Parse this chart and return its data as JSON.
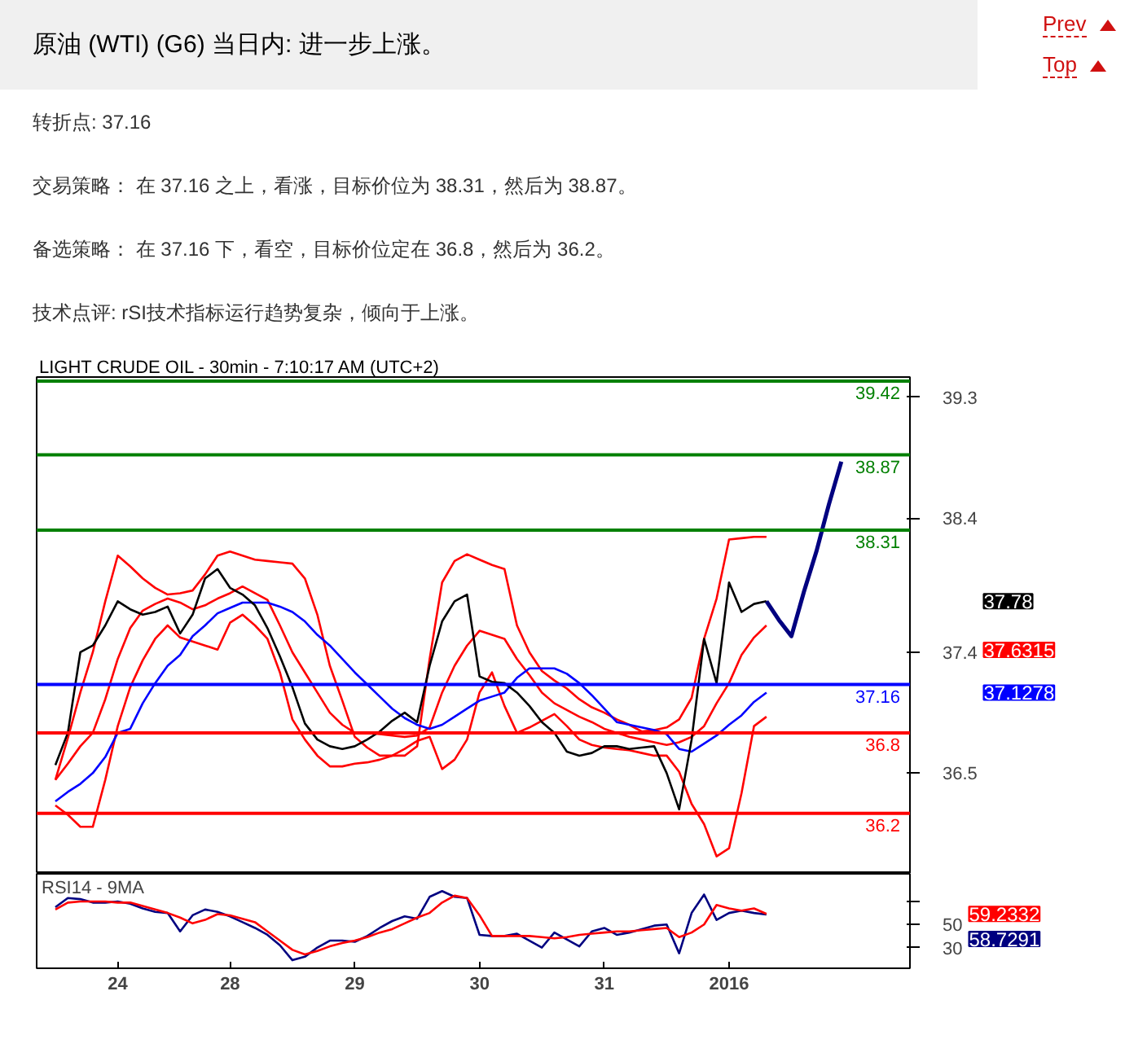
{
  "chart_data": [
    {
      "type": "line",
      "title": "原油 (WTI) (G6) 当日内: 进一步上涨。",
      "subtitle": "LIGHT CRUDE OIL - 30min - 7:10:17 AM (UTC+2)",
      "annotations": [
        "Prev",
        "Top",
        "转折点: 37.16",
        "交易策略： 在 37.16 之上，看涨，目标价位为 38.31，然后为 38.87。",
        "备选策略： 在 37.16 下，看空，目标价位定在 36.8，然后为 36.2。",
        "技术点评: rSI技术指标运行趋势复杂，倾向于上涨。",
        "37.78",
        "37.6315",
        "37.1278"
      ],
      "categories": [
        null,
        null,
        null,
        null,
        null,
        null,
        "24",
        null,
        null,
        null,
        null,
        null,
        null,
        null,
        null,
        "28",
        null,
        null,
        null,
        null,
        null,
        null,
        null,
        null,
        null,
        "29",
        null,
        null,
        null,
        null,
        null,
        null,
        null,
        null,
        null,
        "30",
        null,
        null,
        null,
        null,
        null,
        null,
        null,
        null,
        null,
        "31",
        null,
        null,
        null,
        null,
        null,
        null,
        null,
        null,
        null,
        "2016",
        null,
        null,
        null,
        null,
        null,
        null,
        null,
        null,
        null,
        null,
        null,
        null,
        null,
        null
      ],
      "ylim": [
        35.75,
        39.45
      ],
      "yticks": [
        39.3,
        38.4,
        37.4,
        36.5
      ],
      "tick_labels": "y",
      "grid": false,
      "series": [
        {
          "color": "#ff0000",
          "values": [
            null,
            36.45,
            36.76,
            37.1,
            37.4,
            37.78,
            38.12,
            38.04,
            37.95,
            37.88,
            37.83,
            37.84,
            37.86,
            37.98,
            38.12,
            38.15,
            38.12,
            38.09,
            38.08,
            38.07,
            38.06,
            37.95,
            37.68,
            37.3,
            37.04,
            36.77,
            36.69,
            36.63,
            36.63,
            36.63,
            36.7,
            37.35,
            37.92,
            38.08,
            38.13,
            38.09,
            38.05,
            38.02,
            37.6,
            37.4,
            37.26,
            37.19,
            37.13,
            37.05,
            36.99,
            36.95,
            36.9,
            36.86,
            36.81,
            36.82,
            36.84,
            36.9,
            37.06,
            37.5,
            37.8,
            38.24,
            38.25,
            38.26,
            38.26,
            null,
            null,
            null,
            null,
            null,
            null,
            null,
            null,
            null,
            null,
            null
          ]
        },
        {
          "color": "#ff0000",
          "values": [
            null,
            36.26,
            36.19,
            36.1,
            36.1,
            36.45,
            36.85,
            37.14,
            37.34,
            37.5,
            37.6,
            37.51,
            37.48,
            37.45,
            37.42,
            37.62,
            37.68,
            37.6,
            37.5,
            37.25,
            36.9,
            36.75,
            36.63,
            36.55,
            36.55,
            36.57,
            36.58,
            36.6,
            36.63,
            36.68,
            36.74,
            36.77,
            36.53,
            36.6,
            36.75,
            37.1,
            37.25,
            37.0,
            36.8,
            36.84,
            36.89,
            36.94,
            36.85,
            36.75,
            36.71,
            36.69,
            36.68,
            36.67,
            36.65,
            36.63,
            36.63,
            36.51,
            36.27,
            36.12,
            35.88,
            35.94,
            36.35,
            36.85,
            36.92,
            null,
            null,
            null,
            null,
            null,
            null,
            null,
            null,
            null,
            null,
            null
          ]
        },
        {
          "color": "#ff0000",
          "values": [
            null,
            36.45,
            36.57,
            36.7,
            36.8,
            37.05,
            37.35,
            37.58,
            37.71,
            37.76,
            37.8,
            37.77,
            37.72,
            37.75,
            37.8,
            37.84,
            37.89,
            37.84,
            37.79,
            37.6,
            37.4,
            37.25,
            37.1,
            36.95,
            36.86,
            36.8,
            36.8,
            36.79,
            36.78,
            36.77,
            36.78,
            36.84,
            37.1,
            37.3,
            37.45,
            37.56,
            37.53,
            37.5,
            37.35,
            37.23,
            37.1,
            37.02,
            36.97,
            36.92,
            36.88,
            36.83,
            36.8,
            36.77,
            36.75,
            36.73,
            36.71,
            36.73,
            36.77,
            36.85,
            37.02,
            37.17,
            37.38,
            37.51,
            37.6,
            null,
            null,
            null,
            null,
            null,
            null,
            null,
            null,
            null,
            null,
            null
          ]
        },
        {
          "color": "#0000ff",
          "values": [
            null,
            36.29,
            36.36,
            36.42,
            36.5,
            36.62,
            36.8,
            36.83,
            37.02,
            37.17,
            37.3,
            37.38,
            37.52,
            37.6,
            37.69,
            37.73,
            37.77,
            37.77,
            37.77,
            37.74,
            37.7,
            37.63,
            37.53,
            37.45,
            37.35,
            37.25,
            37.16,
            37.07,
            36.98,
            36.91,
            36.86,
            36.83,
            36.86,
            36.92,
            36.98,
            37.04,
            37.07,
            37.1,
            37.21,
            37.28,
            37.28,
            37.28,
            37.24,
            37.17,
            37.08,
            36.98,
            36.88,
            36.86,
            36.84,
            36.82,
            36.79,
            36.68,
            36.66,
            36.72,
            36.78,
            36.86,
            36.93,
            37.03,
            37.1,
            null,
            null,
            null,
            null,
            null,
            null,
            null,
            null,
            null,
            null,
            null
          ]
        },
        {
          "color": "#000000",
          "values": [
            null,
            36.56,
            36.8,
            37.4,
            37.45,
            37.6,
            37.78,
            37.72,
            37.68,
            37.7,
            37.74,
            37.54,
            37.68,
            37.95,
            38.02,
            37.88,
            37.83,
            37.75,
            37.58,
            37.37,
            37.14,
            36.87,
            36.75,
            36.7,
            36.68,
            36.7,
            36.75,
            36.81,
            36.89,
            36.95,
            36.88,
            37.3,
            37.63,
            37.78,
            37.83,
            37.22,
            37.18,
            37.17,
            37.1,
            37.0,
            36.88,
            36.8,
            36.66,
            36.63,
            36.65,
            36.7,
            36.7,
            36.68,
            36.69,
            36.7,
            36.5,
            36.23,
            36.75,
            37.5,
            37.17,
            37.92,
            37.7,
            37.76,
            37.78,
            null,
            null,
            null,
            null,
            null,
            null,
            null,
            null,
            null,
            null,
            null
          ]
        },
        {
          "color": "#000080",
          "values": [
            null,
            null,
            null,
            null,
            null,
            null,
            null,
            null,
            null,
            null,
            null,
            null,
            null,
            null,
            null,
            null,
            null,
            null,
            null,
            null,
            null,
            null,
            null,
            null,
            null,
            null,
            null,
            null,
            null,
            null,
            null,
            null,
            null,
            null,
            null,
            null,
            null,
            null,
            null,
            null,
            null,
            null,
            null,
            null,
            null,
            null,
            null,
            null,
            null,
            null,
            null,
            null,
            null,
            null,
            null,
            null,
            null,
            null,
            37.78,
            37.64,
            37.52,
            37.85,
            38.15,
            38.5,
            38.82,
            null,
            null,
            null,
            null,
            null
          ]
        }
      ],
      "ref_lines": [
        {
          "axis": "y",
          "value": 39.42,
          "label": "39.42",
          "color": "#008000"
        },
        {
          "axis": "y",
          "value": 38.87,
          "label": "38.87",
          "color": "#008000"
        },
        {
          "axis": "y",
          "value": 38.31,
          "label": "38.31",
          "color": "#008000"
        },
        {
          "axis": "y",
          "value": 37.16,
          "label": "37.16",
          "color": "#0000ff"
        },
        {
          "axis": "y",
          "value": 36.8,
          "label": "36.8",
          "color": "#ff0000"
        },
        {
          "axis": "y",
          "value": 36.2,
          "label": "36.2",
          "color": "#ff0000"
        }
      ]
    },
    {
      "type": "line",
      "title": "RSI14 - 9MA",
      "ylim": [
        12,
        94
      ],
      "yticks": [
        30,
        50,
        {
          "value": 70,
          "label": null
        }
      ],
      "categories": [
        null,
        null,
        null,
        null,
        null,
        null,
        "24",
        null,
        null,
        null,
        null,
        null,
        null,
        null,
        null,
        "28",
        null,
        null,
        null,
        null,
        null,
        null,
        null,
        null,
        null,
        "29",
        null,
        null,
        null,
        null,
        null,
        null,
        null,
        null,
        null,
        "30",
        null,
        null,
        null,
        null,
        null,
        null,
        null,
        null,
        null,
        "31",
        null,
        null,
        null,
        null,
        null,
        null,
        null,
        null,
        null,
        "2016",
        null,
        null,
        null,
        null,
        null,
        null,
        null,
        null,
        null,
        null,
        null,
        null,
        null,
        null
      ],
      "grid": false,
      "annotations": [
        "59.2332",
        "58.7291"
      ],
      "series": [
        {
          "color": "#000080",
          "values": [
            null,
            65,
            73,
            72,
            69,
            69,
            70,
            68,
            64,
            61,
            60,
            44,
            58,
            63,
            61,
            57,
            52,
            47,
            41,
            32,
            19,
            22,
            30,
            36,
            36,
            35,
            40,
            47,
            53,
            57,
            55,
            74,
            79,
            74,
            73,
            41,
            40,
            40,
            42,
            36,
            30,
            43,
            37,
            31,
            44,
            47,
            41,
            43,
            46,
            49,
            50,
            25,
            60,
            76,
            54,
            60,
            62,
            60,
            58.7,
            null,
            null,
            null,
            null,
            null,
            null,
            null,
            null,
            null,
            null,
            null
          ]
        },
        {
          "color": "#ff0000",
          "values": [
            null,
            63,
            69,
            70,
            70,
            70,
            69,
            69,
            66,
            63,
            60,
            56,
            51,
            54,
            59,
            58,
            55,
            52,
            44,
            36,
            28,
            24,
            27,
            31,
            34,
            36,
            39,
            43,
            46,
            51,
            56,
            60,
            69,
            75,
            73,
            58,
            40,
            40,
            40,
            40,
            39,
            38,
            39,
            41,
            42,
            43,
            44,
            44,
            45,
            46,
            47,
            39,
            43,
            50,
            67,
            64,
            62,
            64,
            59.2,
            null,
            null,
            null,
            null,
            null,
            null,
            null,
            null,
            null,
            null,
            null
          ]
        }
      ]
    }
  ]
}
